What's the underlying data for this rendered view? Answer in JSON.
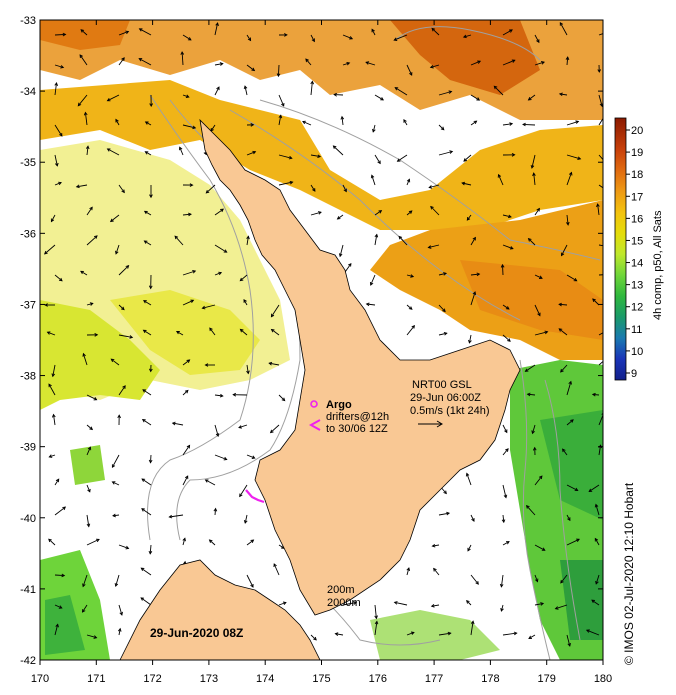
{
  "map": {
    "x_ticks": [
      "170",
      "171",
      "172",
      "173",
      "174",
      "175",
      "176",
      "177",
      "178",
      "179",
      "180"
    ],
    "y_ticks": [
      "-33",
      "-34",
      "-35",
      "-36",
      "-37",
      "-38",
      "-39",
      "-40",
      "-41",
      "-42"
    ],
    "lon_range": [
      170,
      180
    ],
    "lat_range": [
      -33,
      -42
    ]
  },
  "colorbar": {
    "ticks": [
      "20",
      "19",
      "18",
      "17",
      "16",
      "15",
      "14",
      "13",
      "12",
      "11",
      "10",
      "9"
    ],
    "label": "4h comp, p50, All Sats",
    "colors": [
      "#8b1a00",
      "#c8400a",
      "#e06b10",
      "#ee9a14",
      "#f3c20e",
      "#e5dc0a",
      "#bfe82c",
      "#6fd63a",
      "#2fb83e",
      "#1a9a6a",
      "#1a7ab0",
      "#1f58c8",
      "#1a34b8",
      "#12208a"
    ]
  },
  "legend": {
    "argo": "Argo",
    "drifters_line1": "drifters@12h",
    "drifters_line2": "to 30/06 12Z",
    "current_title": "NRT00 GSL",
    "current_time": "29-Jun 06:00Z",
    "current_scale": "0.5m/s (1kt 24h)",
    "isobath_1": "200m",
    "isobath_2": "2000m"
  },
  "map_date": "29-Jun-2020 08Z",
  "credit": "©  IMOS 02-Jul-2020 12:10 Hobart",
  "colors": {
    "land": "#f9c894",
    "argo": "#ee22ee",
    "isobath": "#a0a0a0"
  }
}
